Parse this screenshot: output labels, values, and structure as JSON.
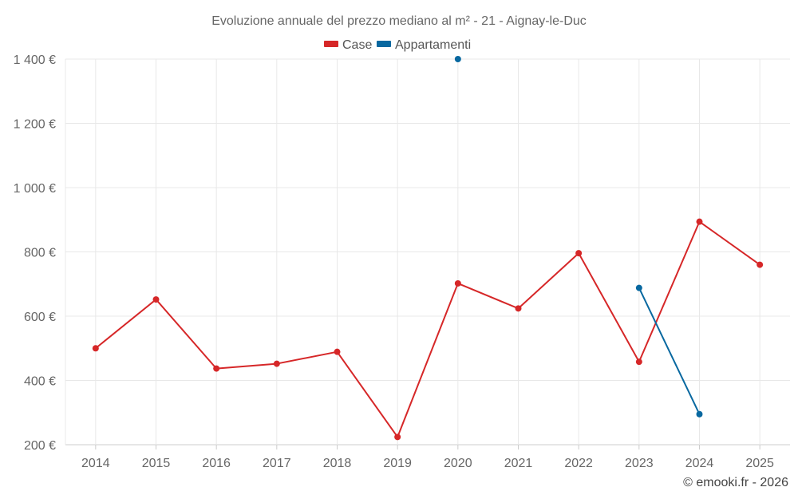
{
  "chart_data": {
    "type": "line",
    "title": "Evoluzione annuale del prezzo mediano al m² - 21 - Aignay-le-Duc",
    "categories": [
      "2014",
      "2015",
      "2016",
      "2017",
      "2018",
      "2019",
      "2020",
      "2021",
      "2022",
      "2023",
      "2024",
      "2025"
    ],
    "series": [
      {
        "name": "Case",
        "color": "#d62728",
        "values": [
          500,
          652,
          437,
          452,
          489,
          224,
          702,
          624,
          796,
          458,
          894,
          760
        ]
      },
      {
        "name": "Appartamenti",
        "color": "#0868a0",
        "values": [
          null,
          null,
          null,
          null,
          null,
          null,
          1400,
          null,
          null,
          688,
          295,
          null
        ]
      }
    ],
    "ylim": [
      200,
      1400
    ],
    "yticks": [
      200,
      400,
      600,
      800,
      1000,
      1200,
      1400
    ],
    "ytick_labels": [
      "200 €",
      "400 €",
      "600 €",
      "800 €",
      "1 000 €",
      "1 200 €",
      "1 400 €"
    ],
    "grid": true,
    "legend_position": "top-center",
    "credit": "© emooki.fr - 2026"
  }
}
